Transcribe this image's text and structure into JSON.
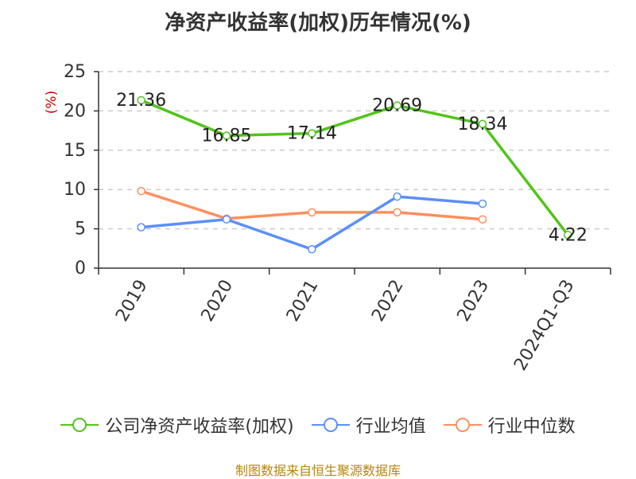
{
  "title": "净资产收益率(加权)历年情况(%)",
  "footer": "制图数据来自恒生聚源数据库",
  "chart_data": {
    "type": "line",
    "categories": [
      "2019",
      "2020",
      "2021",
      "2022",
      "2023",
      "2024Q1-Q3"
    ],
    "ylabel": "(%)",
    "ylim": [
      0,
      25
    ],
    "yticks": [
      0,
      5,
      10,
      15,
      20,
      25
    ],
    "grid": true,
    "legend_position": "bottom",
    "series": [
      {
        "name": "公司净资产收益率(加权)",
        "color": "#52c41a",
        "values": [
          21.36,
          16.85,
          17.14,
          20.69,
          18.34,
          4.22
        ],
        "labels": [
          "21.36",
          "16.85",
          "17.14",
          "20.69",
          "18.34",
          "4.22"
        ]
      },
      {
        "name": "行业均值",
        "color": "#5b8ff9",
        "values": [
          5.2,
          6.2,
          2.4,
          9.1,
          8.2,
          null
        ]
      },
      {
        "name": "行业中位数",
        "color": "#ff8f5e",
        "values": [
          9.8,
          6.3,
          7.1,
          7.1,
          6.2,
          null
        ]
      }
    ]
  }
}
